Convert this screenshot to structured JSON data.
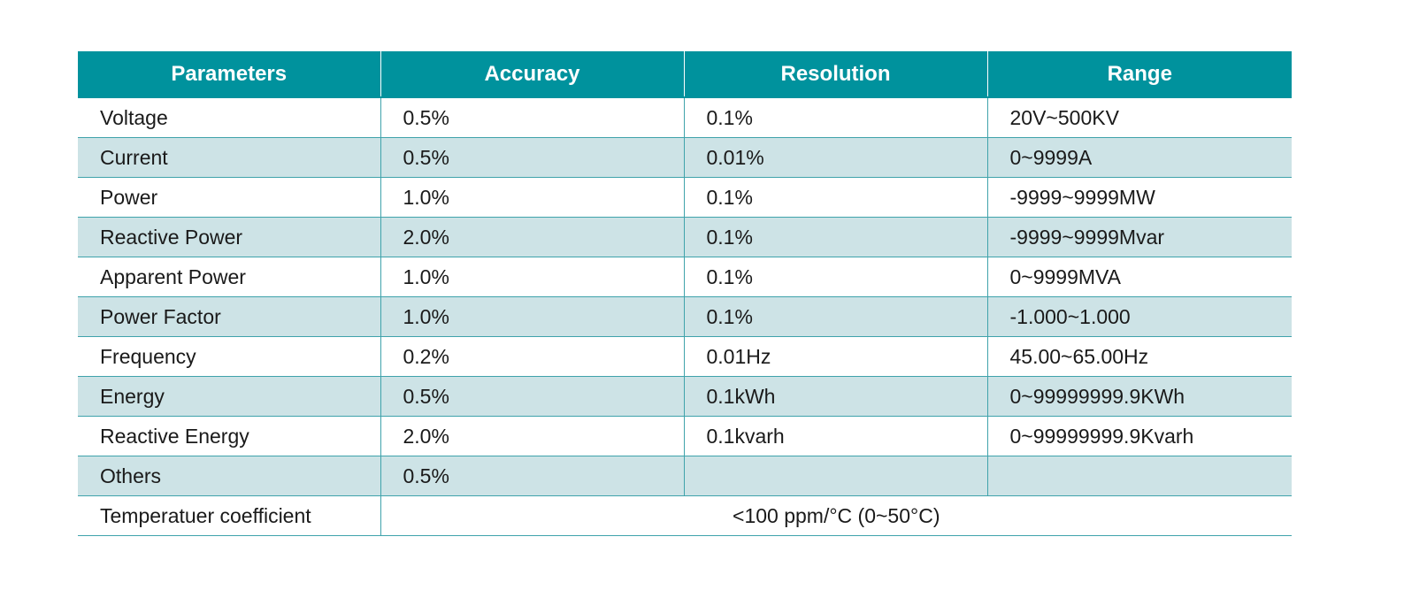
{
  "table": {
    "headers": [
      "Parameters",
      "Accuracy",
      "Resolution",
      "Range"
    ],
    "rows": [
      [
        "Voltage",
        "0.5%",
        "0.1%",
        "20V~500KV"
      ],
      [
        "Current",
        "0.5%",
        "0.01%",
        "0~9999A"
      ],
      [
        "Power",
        "1.0%",
        "0.1%",
        "-9999~9999MW"
      ],
      [
        "Reactive Power",
        "2.0%",
        "0.1%",
        "-9999~9999Mvar"
      ],
      [
        "Apparent Power",
        "1.0%",
        "0.1%",
        "0~9999MVA"
      ],
      [
        "Power Factor",
        "1.0%",
        "0.1%",
        "-1.000~1.000"
      ],
      [
        "Frequency",
        "0.2%",
        "0.01Hz",
        "45.00~65.00Hz"
      ],
      [
        "Energy",
        "0.5%",
        "0.1kWh",
        "0~99999999.9KWh"
      ],
      [
        "Reactive Energy",
        "2.0%",
        "0.1kvarh",
        "0~99999999.9Kvarh"
      ],
      [
        "Others",
        "0.5%",
        "",
        ""
      ]
    ],
    "footer_row": {
      "label": "Temperatuer coefficient",
      "value": "<100 ppm/°C (0~50°C)"
    }
  },
  "colors": {
    "header_bg": "#00929d",
    "header_text": "#ffffff",
    "alt_row_bg": "#cde3e6",
    "grid_line": "#3fa3ab"
  }
}
